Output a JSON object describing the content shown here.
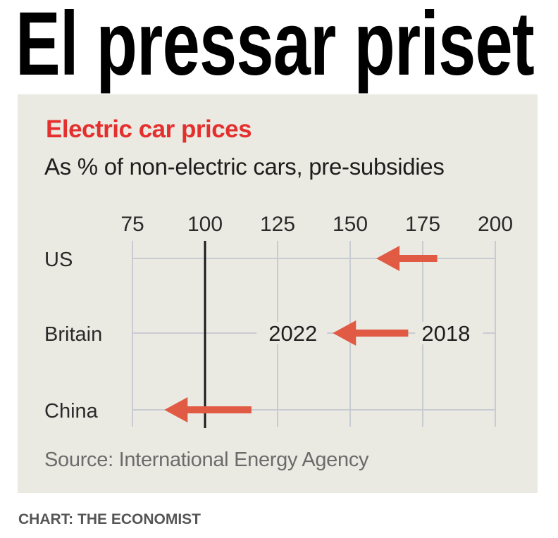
{
  "headline": "El pressar priset",
  "footer": "CHART: THE ECONOMIST",
  "colors": {
    "accent_red": "#e3302f",
    "arrow": "#e05a44",
    "panel_background": "#ebeae2",
    "gridline": "#c9cbd3",
    "reference_line": "#1a1a1a"
  },
  "chart_data": {
    "type": "arrow-dot",
    "title": "Electric car prices",
    "subtitle": "As % of non-electric cars, pre-subsidies",
    "source": "Source: International Energy Agency",
    "xlim": [
      75,
      200
    ],
    "x_ticks": [
      75,
      100,
      125,
      150,
      175,
      200
    ],
    "reference_value": 100,
    "grid": true,
    "series_labels": {
      "start": "2018",
      "end": "2022"
    },
    "categories": [
      "US",
      "Britain",
      "China"
    ],
    "series": [
      {
        "name": "2018",
        "values": [
          180,
          170,
          116
        ]
      },
      {
        "name": "2022",
        "values": [
          159,
          144,
          86
        ]
      }
    ],
    "annotations": [
      {
        "text": "2022",
        "category": "Britain",
        "position": "left of arrow tip"
      },
      {
        "text": "2018",
        "category": "Britain",
        "position": "right of arrow tail"
      }
    ]
  }
}
